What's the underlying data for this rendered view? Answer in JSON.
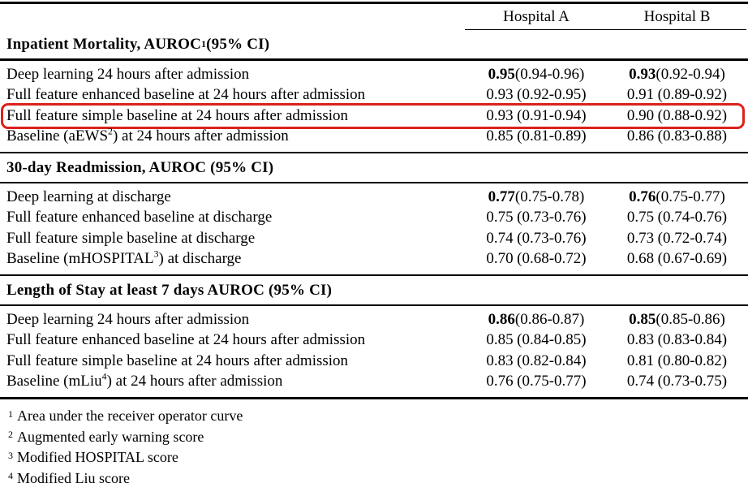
{
  "table": {
    "columns": {
      "a": "Hospital A",
      "b": "Hospital B"
    },
    "highlight_color": "#dc211d",
    "sections": [
      {
        "title_pre": "Inpatient Mortality, AUROC",
        "title_sup": "1",
        "title_post": "(95% CI)",
        "rows": [
          {
            "label_pre": "Deep learning 24 hours after admission",
            "label_sup": "",
            "label_post": "",
            "a": "0.95",
            "a_ci": "(0.94-0.96)",
            "b": "0.93",
            "b_ci": "(0.92-0.94)",
            "bold": true,
            "highlighted": false
          },
          {
            "label_pre": "Full feature enhanced baseline at 24 hours after admission",
            "label_sup": "",
            "label_post": "",
            "a": "0.93",
            "a_ci": "(0.92-0.95)",
            "b": "0.91",
            "b_ci": "(0.89-0.92)",
            "bold": false,
            "highlighted": false
          },
          {
            "label_pre": "Full feature simple baseline at 24 hours after admission",
            "label_sup": "",
            "label_post": "",
            "a": "0.93",
            "a_ci": "(0.91-0.94)",
            "b": "0.90",
            "b_ci": "(0.88-0.92)",
            "bold": false,
            "highlighted": true
          },
          {
            "label_pre": "Baseline (aEWS",
            "label_sup": "2",
            "label_post": ") at 24 hours after admission",
            "a": "0.85",
            "a_ci": "(0.81-0.89)",
            "b": "0.86",
            "b_ci": "(0.83-0.88)",
            "bold": false,
            "highlighted": false
          }
        ]
      },
      {
        "title_pre": "30-day Readmission, AUROC (95% CI)",
        "title_sup": "",
        "title_post": "",
        "rows": [
          {
            "label_pre": "Deep learning at discharge",
            "label_sup": "",
            "label_post": "",
            "a": "0.77",
            "a_ci": "(0.75-0.78)",
            "b": "0.76",
            "b_ci": "(0.75-0.77)",
            "bold": true,
            "highlighted": false
          },
          {
            "label_pre": "Full feature enhanced baseline at discharge",
            "label_sup": "",
            "label_post": "",
            "a": "0.75",
            "a_ci": "(0.73-0.76)",
            "b": "0.75",
            "b_ci": "(0.74-0.76)",
            "bold": false,
            "highlighted": false
          },
          {
            "label_pre": "Full feature simple baseline at discharge",
            "label_sup": "",
            "label_post": "",
            "a": "0.74",
            "a_ci": "(0.73-0.76)",
            "b": "0.73",
            "b_ci": "(0.72-0.74)",
            "bold": false,
            "highlighted": false
          },
          {
            "label_pre": "Baseline (mHOSPITAL",
            "label_sup": "3",
            "label_post": ") at discharge",
            "a": "0.70",
            "a_ci": "(0.68-0.72)",
            "b": "0.68",
            "b_ci": "(0.67-0.69)",
            "bold": false,
            "highlighted": false
          }
        ]
      },
      {
        "title_pre": "Length of Stay at least 7 days AUROC (95% CI)",
        "title_sup": "",
        "title_post": "",
        "rows": [
          {
            "label_pre": "Deep learning 24 hours after admission",
            "label_sup": "",
            "label_post": "",
            "a": "0.86",
            "a_ci": "(0.86-0.87)",
            "b": "0.85",
            "b_ci": "(0.85-0.86)",
            "bold": true,
            "highlighted": false
          },
          {
            "label_pre": "Full feature enhanced baseline at 24 hours after admission",
            "label_sup": "",
            "label_post": "",
            "a": "0.85",
            "a_ci": "(0.84-0.85)",
            "b": "0.83",
            "b_ci": "(0.83-0.84)",
            "bold": false,
            "highlighted": false
          },
          {
            "label_pre": "Full feature simple baseline at 24 hours after admission",
            "label_sup": "",
            "label_post": "",
            "a": "0.83",
            "a_ci": "(0.82-0.84)",
            "b": "0.81",
            "b_ci": "(0.80-0.82)",
            "bold": false,
            "highlighted": false
          },
          {
            "label_pre": "Baseline (mLiu",
            "label_sup": "4",
            "label_post": ") at 24 hours after admission",
            "a": "0.76",
            "a_ci": "(0.75-0.77)",
            "b": "0.74",
            "b_ci": "(0.73-0.75)",
            "bold": false,
            "highlighted": false
          }
        ]
      }
    ],
    "footnotes": [
      {
        "sup": "1",
        "text": "Area under the receiver operator curve"
      },
      {
        "sup": "2",
        "text": "Augmented early warning score"
      },
      {
        "sup": "3",
        "text": "Modified HOSPITAL score"
      },
      {
        "sup": "4",
        "text": "Modified Liu score"
      }
    ]
  }
}
